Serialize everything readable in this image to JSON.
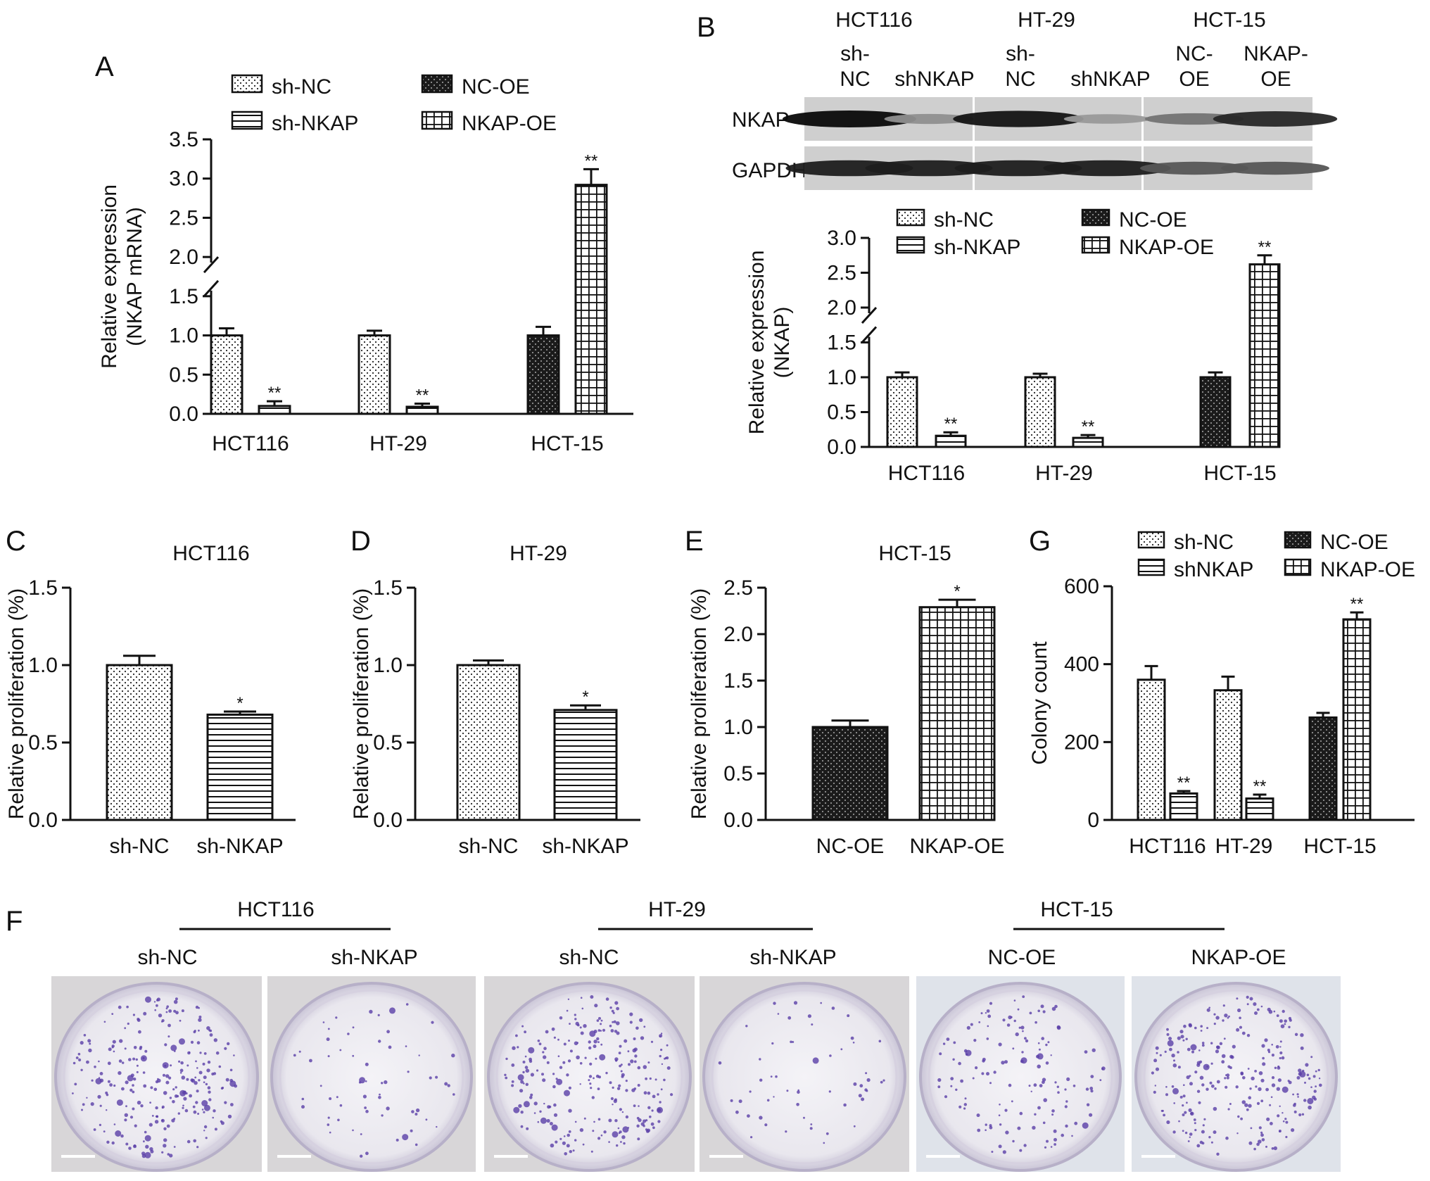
{
  "panel_letters": {
    "A": "A",
    "B": "B",
    "C": "C",
    "D": "D",
    "E": "E",
    "F": "F",
    "G": "G"
  },
  "chart_data": [
    {
      "panel": "A",
      "type": "bar",
      "ylabel": [
        "Relative expression",
        "(NKAP mRNA)"
      ],
      "yticks": [
        "0.0",
        "0.5",
        "1.0",
        "1.5",
        "2.0",
        "2.5",
        "3.0",
        "3.5"
      ],
      "ylim": [
        0,
        3.5
      ],
      "axis_break": [
        1.5,
        2.0
      ],
      "categories": [
        "HCT116",
        "HT-29",
        "HCT-15"
      ],
      "legend": [
        "sh-NC",
        "sh-NKAP",
        "NC-OE",
        "NKAP-OE"
      ],
      "bars": [
        {
          "category": "HCT116",
          "series": "sh-NC",
          "value": 1.0,
          "error": 0.09,
          "sig": ""
        },
        {
          "category": "HCT116",
          "series": "sh-NKAP",
          "value": 0.1,
          "error": 0.06,
          "sig": "**"
        },
        {
          "category": "HT-29",
          "series": "sh-NC",
          "value": 1.0,
          "error": 0.06,
          "sig": ""
        },
        {
          "category": "HT-29",
          "series": "sh-NKAP",
          "value": 0.09,
          "error": 0.04,
          "sig": "**"
        },
        {
          "category": "HCT-15",
          "series": "NC-OE",
          "value": 1.0,
          "error": 0.11,
          "sig": ""
        },
        {
          "category": "HCT-15",
          "series": "NKAP-OE",
          "value": 2.92,
          "error": 0.2,
          "sig": "**"
        }
      ]
    },
    {
      "panel": "B",
      "type": "bar",
      "ylabel": [
        "Relative expression",
        "(NKAP)"
      ],
      "yticks": [
        "0.0",
        "0.5",
        "1.0",
        "1.5",
        "2.0",
        "2.5",
        "3.0"
      ],
      "ylim": [
        0,
        3.0
      ],
      "axis_break": [
        1.5,
        2.0
      ],
      "categories": [
        "HCT116",
        "HT-29",
        "HCT-15"
      ],
      "legend": [
        "sh-NC",
        "sh-NKAP",
        "NC-OE",
        "NKAP-OE"
      ],
      "bars": [
        {
          "category": "HCT116",
          "series": "sh-NC",
          "value": 1.0,
          "error": 0.07,
          "sig": ""
        },
        {
          "category": "HCT116",
          "series": "sh-NKAP",
          "value": 0.16,
          "error": 0.05,
          "sig": "**"
        },
        {
          "category": "HT-29",
          "series": "sh-NC",
          "value": 1.0,
          "error": 0.05,
          "sig": ""
        },
        {
          "category": "HT-29",
          "series": "sh-NKAP",
          "value": 0.13,
          "error": 0.04,
          "sig": "**"
        },
        {
          "category": "HCT-15",
          "series": "NC-OE",
          "value": 1.0,
          "error": 0.07,
          "sig": ""
        },
        {
          "category": "HCT-15",
          "series": "NKAP-OE",
          "value": 2.62,
          "error": 0.13,
          "sig": "**"
        }
      ]
    },
    {
      "panel": "C",
      "type": "bar",
      "title": "HCT116",
      "ylabel": [
        "Relative proliferation (%)"
      ],
      "yticks": [
        "0.0",
        "0.5",
        "1.0",
        "1.5"
      ],
      "ylim": [
        0,
        1.5
      ],
      "categories": [
        "sh-NC",
        "sh-NKAP"
      ],
      "bars": [
        {
          "category": "sh-NC",
          "series": "sh-NC",
          "value": 1.0,
          "error": 0.06,
          "sig": ""
        },
        {
          "category": "sh-NKAP",
          "series": "sh-NKAP",
          "value": 0.68,
          "error": 0.02,
          "sig": "*"
        }
      ]
    },
    {
      "panel": "D",
      "type": "bar",
      "title": "HT-29",
      "ylabel": [
        "Relative proliferation (%)"
      ],
      "yticks": [
        "0.0",
        "0.5",
        "1.0",
        "1.5"
      ],
      "ylim": [
        0,
        1.5
      ],
      "categories": [
        "sh-NC",
        "sh-NKAP"
      ],
      "bars": [
        {
          "category": "sh-NC",
          "series": "sh-NC",
          "value": 1.0,
          "error": 0.03,
          "sig": ""
        },
        {
          "category": "sh-NKAP",
          "series": "sh-NKAP",
          "value": 0.71,
          "error": 0.03,
          "sig": "*"
        }
      ]
    },
    {
      "panel": "E",
      "type": "bar",
      "title": "HCT-15",
      "ylabel": [
        "Relative proliferation (%)"
      ],
      "yticks": [
        "0.0",
        "0.5",
        "1.0",
        "1.5",
        "2.0",
        "2.5"
      ],
      "ylim": [
        0,
        2.5
      ],
      "categories": [
        "NC-OE",
        "NKAP-OE"
      ],
      "bars": [
        {
          "category": "NC-OE",
          "series": "NC-OE",
          "value": 1.0,
          "error": 0.07,
          "sig": ""
        },
        {
          "category": "NKAP-OE",
          "series": "NKAP-OE",
          "value": 2.29,
          "error": 0.08,
          "sig": "*"
        }
      ]
    },
    {
      "panel": "G",
      "type": "bar",
      "ylabel": [
        "Colony count"
      ],
      "yticks": [
        "0",
        "200",
        "400",
        "600"
      ],
      "ylim": [
        0,
        600
      ],
      "categories": [
        "HCT116",
        "HT-29",
        "HCT-15"
      ],
      "legend": [
        "sh-NC",
        "shNKAP",
        "NC-OE",
        "NKAP-OE"
      ],
      "bars": [
        {
          "category": "HCT116",
          "series": "sh-NC",
          "value": 360,
          "error": 35,
          "sig": ""
        },
        {
          "category": "HCT116",
          "series": "sh-NKAP",
          "value": 68,
          "error": 6,
          "sig": "**"
        },
        {
          "category": "HT-29",
          "series": "sh-NC",
          "value": 333,
          "error": 35,
          "sig": ""
        },
        {
          "category": "HT-29",
          "series": "sh-NKAP",
          "value": 55,
          "error": 10,
          "sig": "**"
        },
        {
          "category": "HCT-15",
          "series": "NC-OE",
          "value": 263,
          "error": 12,
          "sig": ""
        },
        {
          "category": "HCT-15",
          "series": "NKAP-OE",
          "value": 515,
          "error": 18,
          "sig": "**"
        }
      ]
    }
  ],
  "western_blot": {
    "cell_lines": [
      "HCT116",
      "HT-29",
      "HCT-15"
    ],
    "lanes": [
      [
        "sh-",
        "NC"
      ],
      [
        "shNKAP"
      ],
      [
        "sh-",
        "NC"
      ],
      [
        "shNKAP"
      ],
      [
        "NC-",
        "OE"
      ],
      [
        "NKAP-",
        "OE"
      ]
    ],
    "rows": [
      "NKAP",
      "GAPDH"
    ],
    "band_intensity": {
      "NKAP": [
        1.0,
        0.3,
        0.95,
        0.25,
        0.45,
        0.85
      ],
      "GAPDH": [
        0.9,
        0.9,
        0.9,
        0.9,
        0.6,
        0.6
      ]
    }
  },
  "colony_images": {
    "groups": [
      "HCT116",
      "HT-29",
      "HCT-15"
    ],
    "labels": [
      "sh-NC",
      "sh-NKAP",
      "sh-NC",
      "sh-NKAP",
      "NC-OE",
      "NKAP-OE"
    ],
    "colony_density": [
      1.0,
      0.25,
      1.0,
      0.22,
      0.55,
      1.0
    ],
    "colors": {
      "dish_bg": "#d8d6d8",
      "plate": "#eceaf0",
      "stain": "#5a3fa8"
    }
  }
}
